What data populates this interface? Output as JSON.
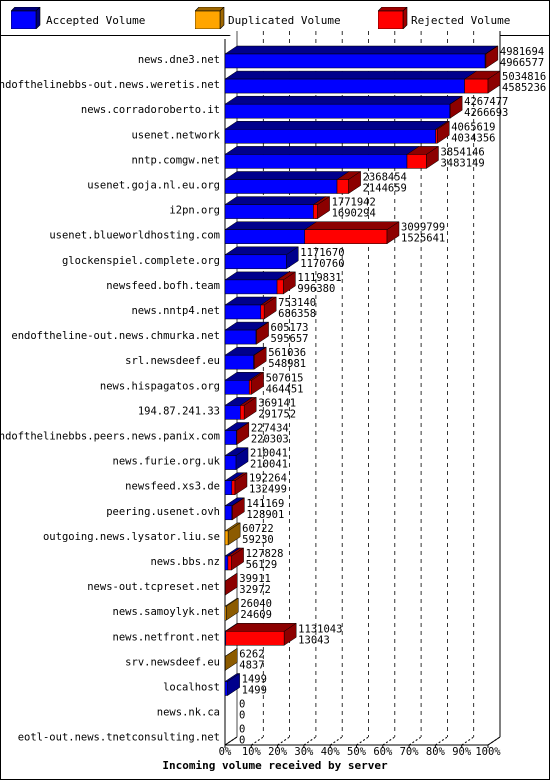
{
  "legend": [
    {
      "label": "Accepted Volume",
      "color": "#0000ff"
    },
    {
      "label": "Duplicated Volume",
      "color": "#ffa500"
    },
    {
      "label": "Rejected Volume",
      "color": "#ff0000"
    }
  ],
  "chart_data": {
    "type": "bar",
    "orientation": "horizontal",
    "stacked": true,
    "title": "",
    "xlabel": "Incoming volume received by server",
    "ylabel": "",
    "xlim": [
      0,
      100
    ],
    "x_ticks": [
      "0%",
      "10%",
      "20%",
      "30%",
      "40%",
      "50%",
      "60%",
      "70%",
      "80%",
      "90%",
      "100%"
    ],
    "grid": true,
    "legend_position": "top",
    "categories": [
      "news.dne3.net",
      "endofthelinebbs-out.news.weretis.net",
      "news.corradoroberto.it",
      "usenet.network",
      "nntp.comgw.net",
      "usenet.goja.nl.eu.org",
      "i2pn.org",
      "usenet.blueworldhosting.com",
      "glockenspiel.complete.org",
      "newsfeed.bofh.team",
      "news.nntp4.net",
      "endoftheline-out.news.chmurka.net",
      "srl.newsdeef.eu",
      "news.hispagatos.org",
      "194.87.241.33",
      "endofthelinebbs.peers.news.panix.com",
      "news.furie.org.uk",
      "newsfeed.xs3.de",
      "peering.usenet.ovh",
      "outgoing.news.lysator.liu.se",
      "news.bbs.nz",
      "news-out.tcpreset.net",
      "news.samoylyk.net",
      "news.netfront.net",
      "srv.newsdeef.eu",
      "localhost",
      "news.nk.ca",
      "eotl-out.news.tnetconsulting.net"
    ],
    "labels_top": [
      "4981694",
      "5034816",
      "4267477",
      "4065619",
      "3854146",
      "2368454",
      "1771942",
      "3099799",
      "1171670",
      "1119831",
      "753140",
      "605173",
      "561036",
      "507615",
      "369141",
      "227434",
      "210041",
      "192264",
      "141169",
      "60722",
      "127828",
      "39911",
      "26040",
      "1131043",
      "6262",
      "1499",
      "0",
      "0"
    ],
    "labels_bottom": [
      "4966577",
      "4585236",
      "4266693",
      "4034356",
      "3483149",
      "2144659",
      "1690294",
      "1525641",
      "1170760",
      "996380",
      "686358",
      "595657",
      "548981",
      "464451",
      "291752",
      "220303",
      "210041",
      "132499",
      "128901",
      "59230",
      "56129",
      "32972",
      "24609",
      "13043",
      "4837",
      "1499",
      "0",
      "0"
    ],
    "series": [
      {
        "name": "Accepted Volume",
        "color": "#0000ff",
        "values": [
          98.9,
          91.1,
          85.5,
          80.1,
          69.2,
          42.6,
          33.6,
          30.3,
          23.3,
          19.8,
          13.6,
          11.8,
          10.9,
          9.2,
          5.8,
          4.4,
          4.2,
          2.6,
          2.6,
          0,
          1.1,
          0,
          0,
          0.3,
          0,
          1.0,
          0,
          0
        ]
      },
      {
        "name": "Duplicated Volume",
        "color": "#ffa500",
        "values": [
          0,
          0,
          0,
          0,
          0,
          0,
          0,
          0,
          0,
          0,
          0,
          0,
          0,
          0,
          0,
          0,
          0,
          0,
          0,
          1.2,
          0,
          0,
          0.5,
          0,
          0.1,
          0,
          0,
          0
        ]
      },
      {
        "name": "Rejected Volume",
        "color": "#ff0000",
        "values": [
          0.3,
          8.9,
          0.1,
          0.6,
          7.4,
          4.4,
          1.6,
          31.3,
          0,
          2.4,
          1.3,
          0.2,
          0.2,
          0.9,
          1.5,
          0.1,
          0,
          1.2,
          0.2,
          0,
          1.4,
          0.1,
          0,
          22.2,
          0,
          0,
          0,
          0
        ]
      }
    ]
  }
}
